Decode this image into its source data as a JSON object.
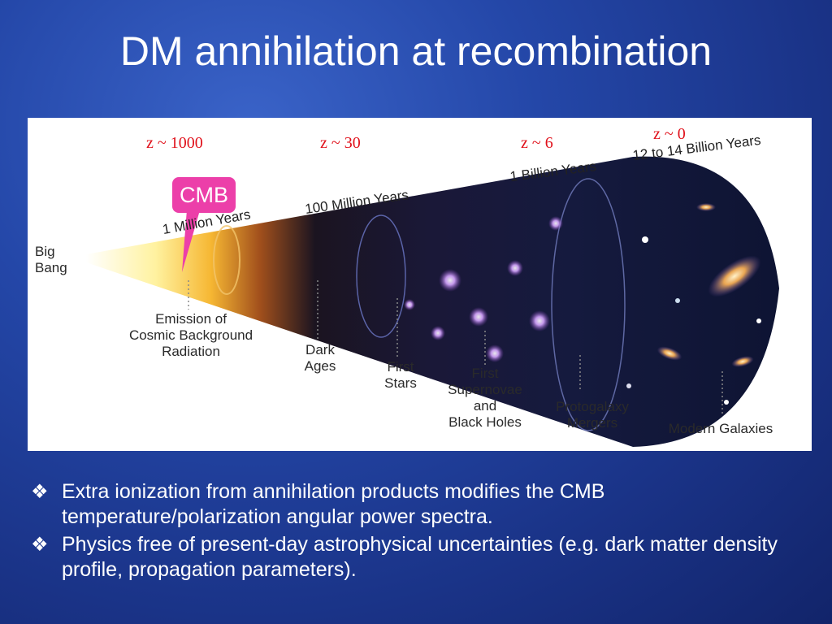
{
  "title": "DM annihilation at recombination",
  "figure": {
    "redshifts": [
      "z ~ 1000",
      "z ~ 30",
      "z ~ 6",
      "z ~ 0"
    ],
    "times": [
      "1 Million Years",
      "100 Million Years",
      "1 Billion Years",
      "12 to 14  Billion Years"
    ],
    "origin": "Big\nBang",
    "cmb_tag": "CMB",
    "epochs": [
      "Emission of\nCosmic Background\nRadiation",
      "Dark\nAges",
      "First\nStars",
      "First\nSupernovae\nand\nBlack Holes",
      "Protogalaxy\nMergers",
      "Modern Galaxies"
    ]
  },
  "bullets": [
    "Extra ionization from annihilation products modifies the CMB temperature/polarization angular power spectra.",
    "Physics free of present-day astrophysical uncertainties (e.g. dark matter density profile, propagation parameters)."
  ],
  "bullet_icon": "diamond-bullet-icon"
}
